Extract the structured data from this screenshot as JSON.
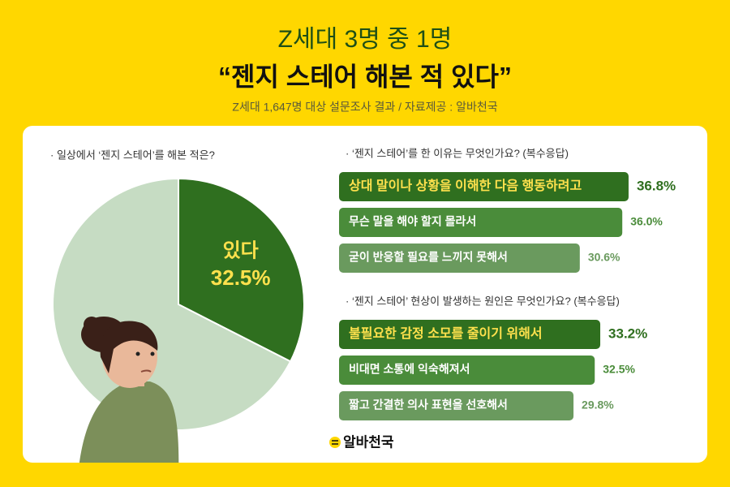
{
  "header": {
    "title": "Z세대 3명 중 1명",
    "headline": "“젠지 스테어 해본 적 있다”",
    "subtitle": "Z세대 1,647명 대상 설문조사 결과 / 자료제공 : 알바천국"
  },
  "chart_data": [
    {
      "type": "pie",
      "title": "· 일상에서 ‘젠지 스테어’를 해본 적은?",
      "categories": [
        "있다",
        null
      ],
      "values": [
        32.5,
        67.5
      ],
      "value_labels": [
        "32.5%",
        null
      ],
      "colors": [
        "#2f6f1f",
        "#c6dcc3"
      ]
    },
    {
      "type": "hbar",
      "title": "· ‘젠지 스테어’를 한 이유는 무엇인가요? (복수응답)",
      "categories": [
        "상대 말이나 상황을 이해한 다음 행동하려고",
        "무슨 말을 해야 할지 몰라서",
        "굳이 반응할 필요를 느끼지 못해서"
      ],
      "values": [
        36.8,
        36.0,
        30.6
      ],
      "value_labels": [
        "36.8%",
        "36.0%",
        "30.6%"
      ],
      "colors": [
        "#2f6f1f",
        "#4a8c3a",
        "#6a9a5e"
      ]
    },
    {
      "type": "hbar",
      "title": "· ‘젠지 스테어’ 현상이 발생하는 원인은 무엇인가요? (복수응답)",
      "categories": [
        "불필요한 감정 소모를 줄이기 위해서",
        "비대면 소통에 익숙해져서",
        "짧고 간결한 의사 표현을 선호해서"
      ],
      "values": [
        33.2,
        32.5,
        29.8
      ],
      "value_labels": [
        "33.2%",
        "32.5%",
        "29.8%"
      ],
      "colors": [
        "#2f6f1f",
        "#4a8c3a",
        "#6a9a5e"
      ]
    }
  ],
  "brand": "알바천국"
}
